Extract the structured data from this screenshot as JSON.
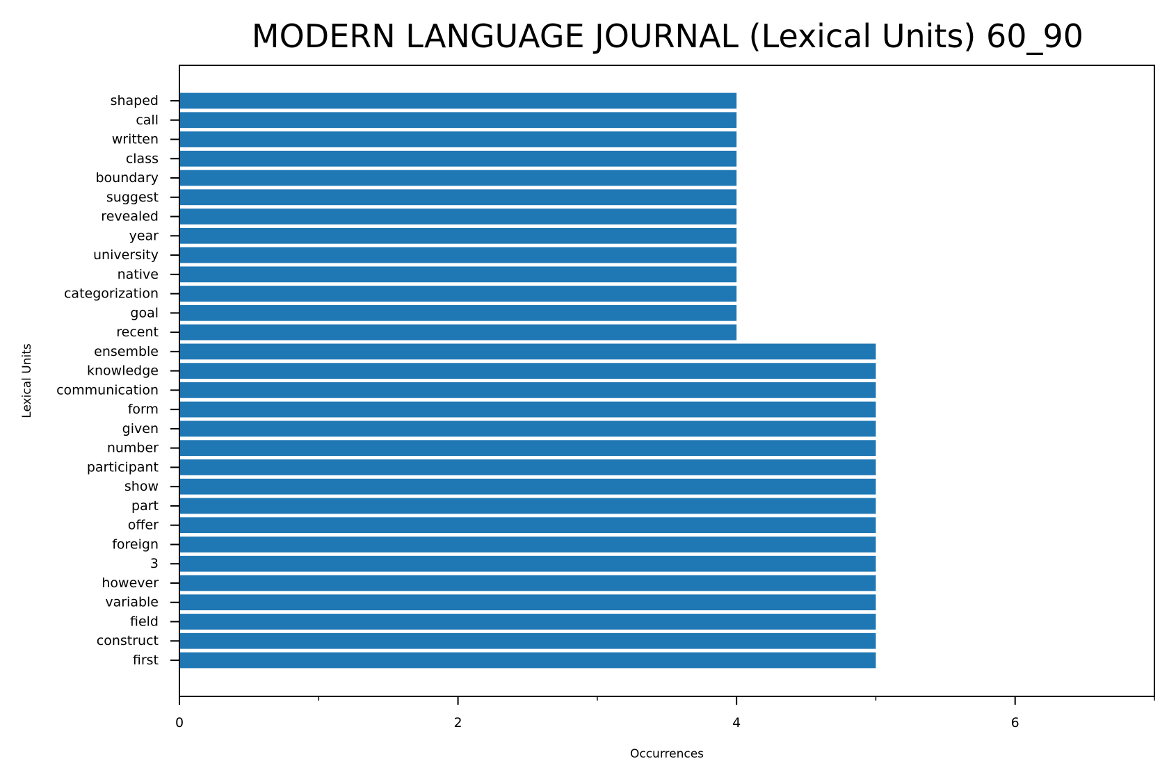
{
  "chart_data": {
    "type": "bar",
    "orientation": "horizontal",
    "title": "MODERN LANGUAGE JOURNAL (Lexical Units) 60_90",
    "xlabel": "Occurrences",
    "ylabel": "Lexical Units",
    "xlim": [
      0,
      7
    ],
    "x_ticks": [
      0,
      2,
      4,
      6
    ],
    "x_tick_labels": [
      "0",
      "2",
      "4",
      "6"
    ],
    "x_minor_ticks": [
      1,
      3,
      5,
      7
    ],
    "grid": false,
    "bar_color": "#1f77b4",
    "categories": [
      "shaped",
      "call",
      "written",
      "class",
      "boundary",
      "suggest",
      "revealed",
      "year",
      "university",
      "native",
      "categorization",
      "goal",
      "recent",
      "ensemble",
      "knowledge",
      "communication",
      "form",
      "given",
      "number",
      "participant",
      "show",
      "part",
      "offer",
      "foreign",
      "3",
      "however",
      "variable",
      "field",
      "construct",
      "first"
    ],
    "values": [
      4,
      4,
      4,
      4,
      4,
      4,
      4,
      4,
      4,
      4,
      4,
      4,
      4,
      5,
      5,
      5,
      5,
      5,
      5,
      5,
      5,
      5,
      5,
      5,
      5,
      5,
      5,
      5,
      5,
      5
    ]
  }
}
